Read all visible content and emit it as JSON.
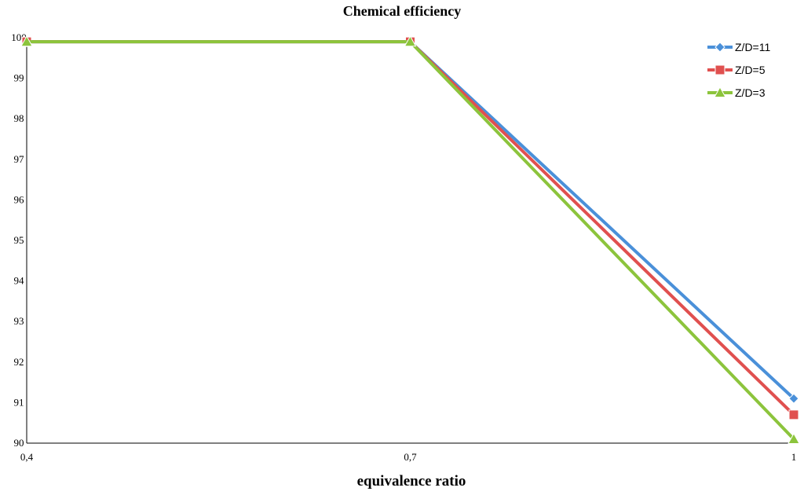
{
  "chart_data": {
    "type": "line",
    "title": "Chemical efficiency",
    "xlabel": "equivalence ratio",
    "ylabel": "",
    "categories": [
      "0,4",
      "0,7",
      "1"
    ],
    "x": [
      0.4,
      0.7,
      1.0
    ],
    "ylim": [
      90,
      100
    ],
    "yticks": [
      "90",
      "91",
      "92",
      "93",
      "94",
      "95",
      "96",
      "97",
      "98",
      "99",
      "100"
    ],
    "grid": false,
    "legend_position": "top-right",
    "series": [
      {
        "name": "Z/D=11",
        "values": [
          99.9,
          99.9,
          91.1
        ],
        "color": "#4a90d9",
        "marker": "diamond"
      },
      {
        "name": "Z/D=5",
        "values": [
          99.9,
          99.9,
          90.7
        ],
        "color": "#e0504f",
        "marker": "square"
      },
      {
        "name": "Z/D=3",
        "values": [
          99.9,
          99.9,
          90.1
        ],
        "color": "#8cc43c",
        "marker": "triangle"
      }
    ]
  }
}
